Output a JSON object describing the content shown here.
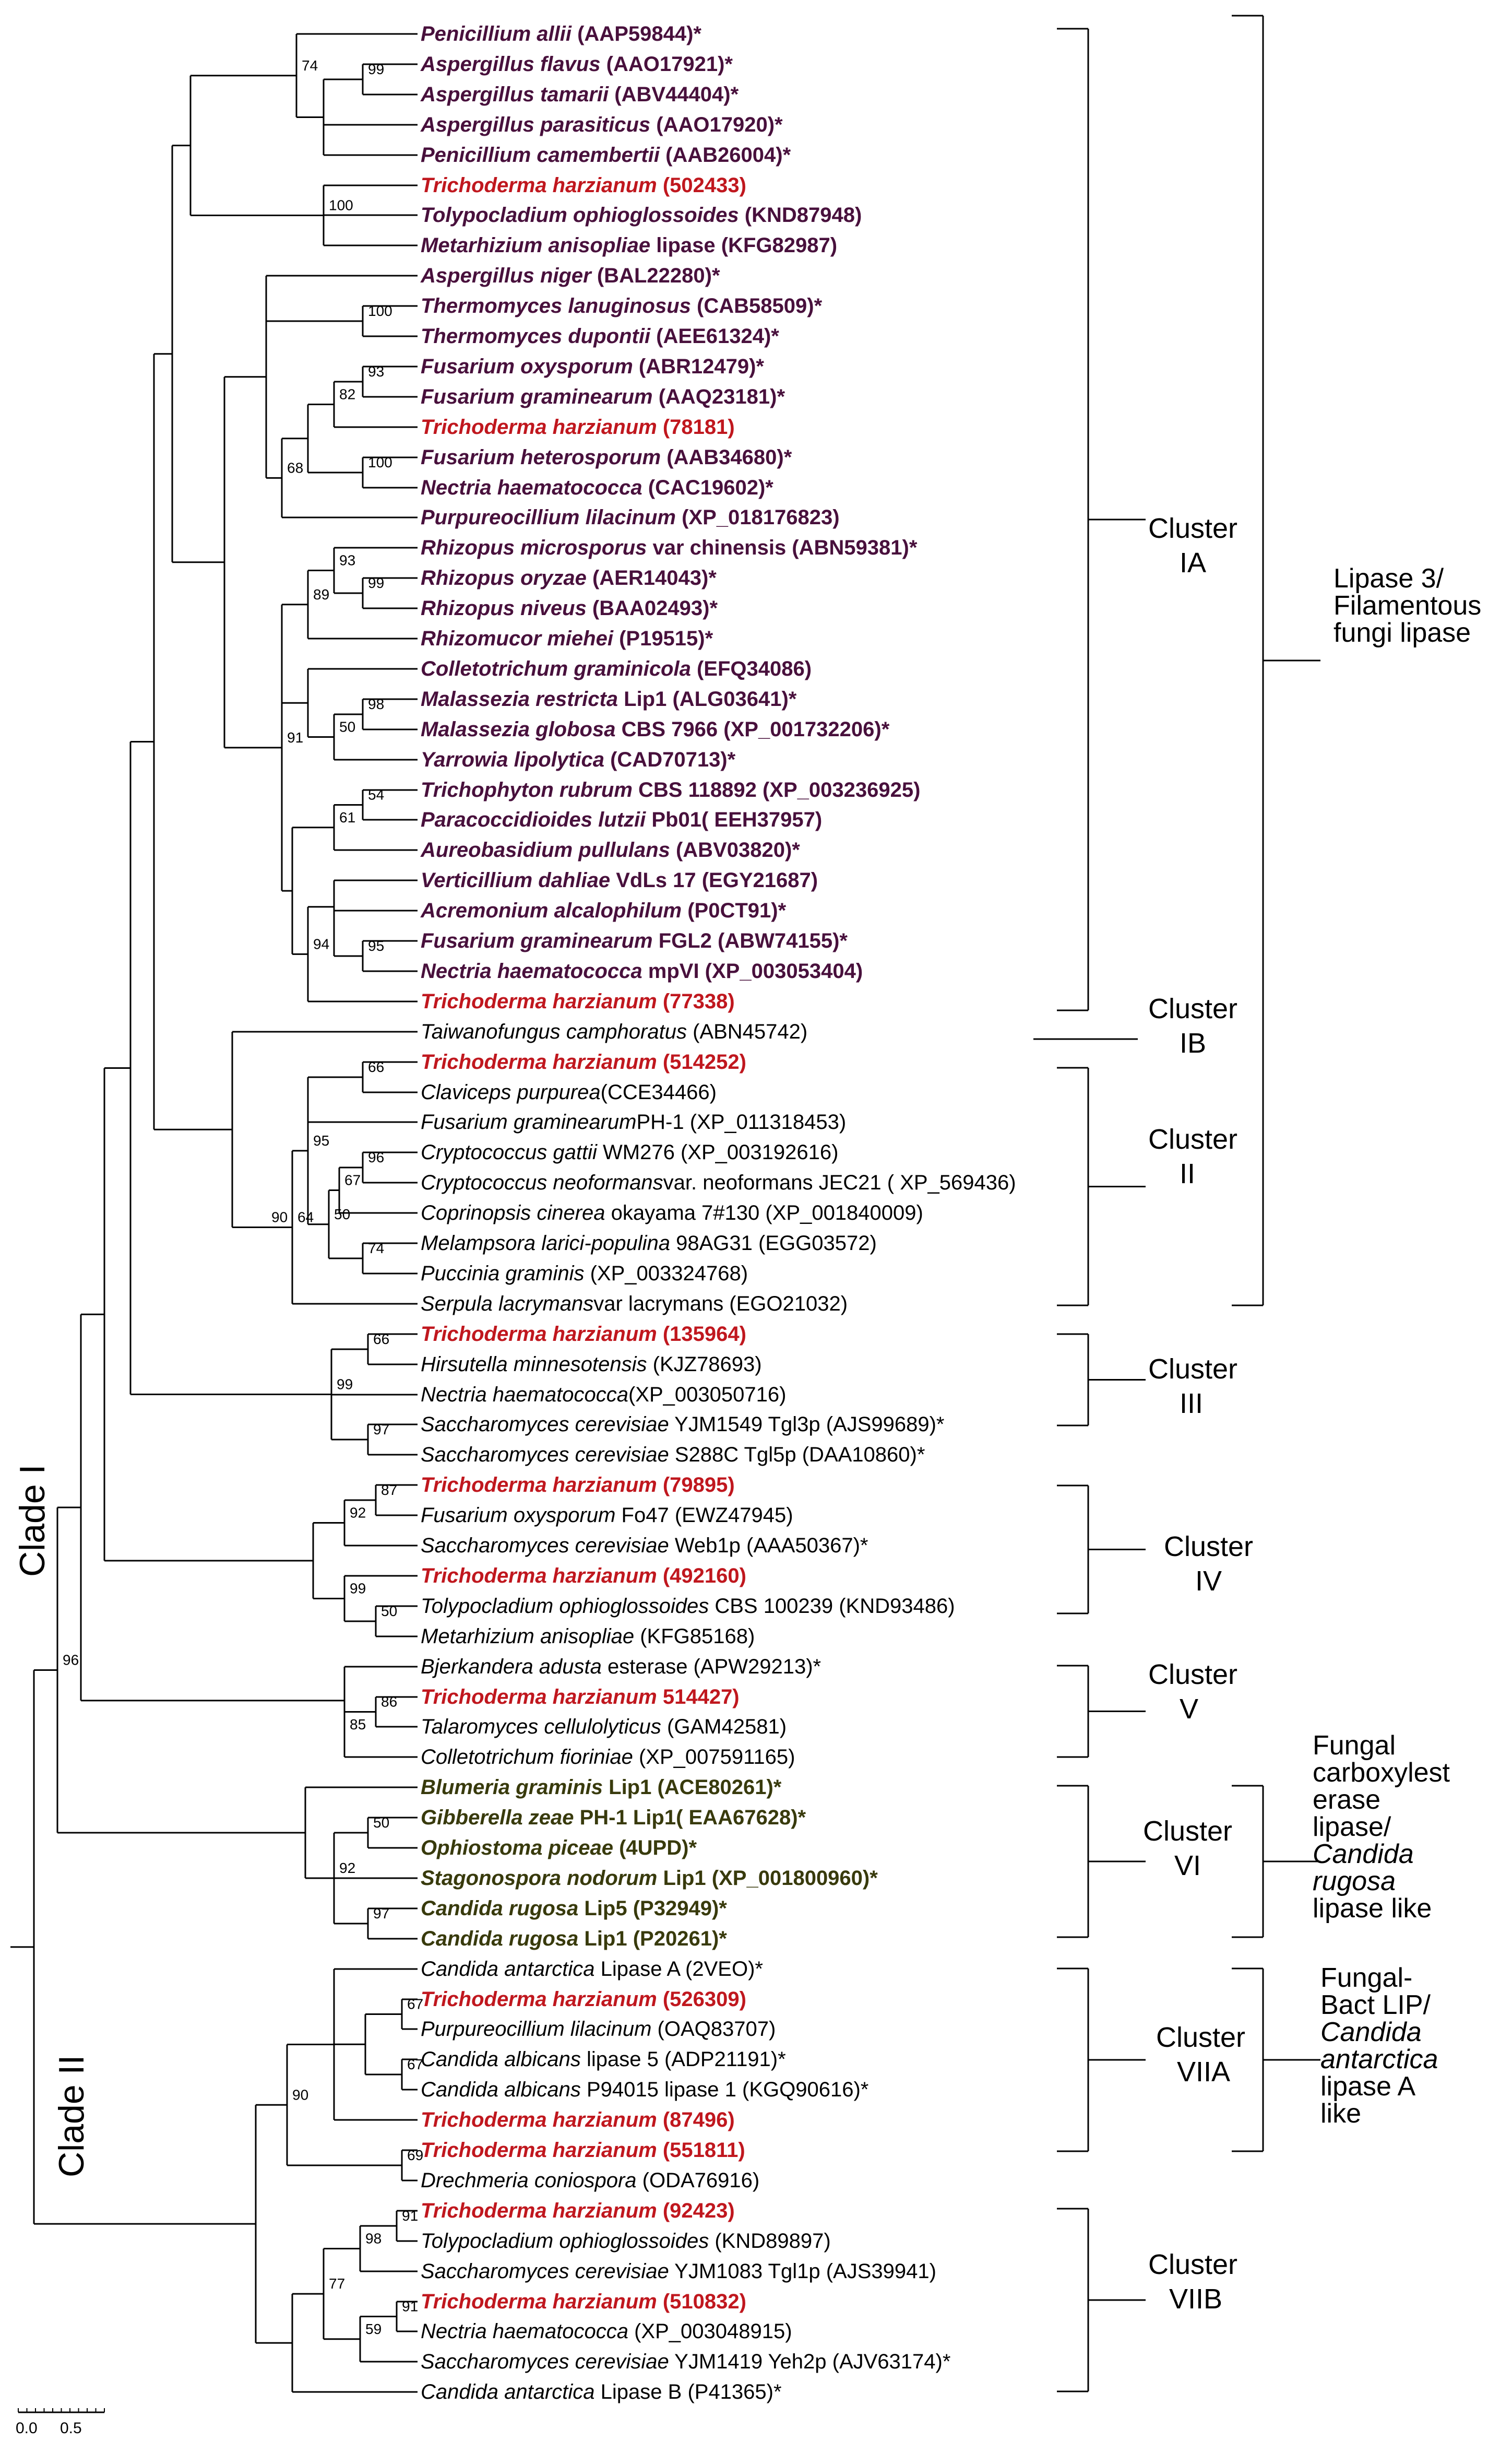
{
  "colors": {
    "line": "#000000",
    "label_default": "#000000",
    "label_highlight": "#c0171e",
    "label_lipase3": "#48103c",
    "label_fungal_carboxyl": "#383a0c"
  },
  "taxa": [
    {
      "id": "t1",
      "species": "Penicillium allii",
      "rest": " (AAP59844)*",
      "style": "lipase3"
    },
    {
      "id": "t2",
      "species": "Aspergillus flavus",
      "rest": " (AAO17921)*",
      "style": "lipase3"
    },
    {
      "id": "t3",
      "species": "Aspergillus tamarii",
      "rest": " (ABV44404)*",
      "style": "lipase3"
    },
    {
      "id": "t4",
      "species": "Aspergillus parasiticus",
      "rest": " (AAO17920)*",
      "style": "lipase3"
    },
    {
      "id": "t5",
      "species": "Penicillium camembertii",
      "rest": " (AAB26004)*",
      "style": "lipase3"
    },
    {
      "id": "t6",
      "species": "Trichoderma harzianum",
      "rest": " (502433)",
      "style": "highlight"
    },
    {
      "id": "t7",
      "species": "Tolypocladium ophioglossoides",
      "rest": " (KND87948)",
      "style": "lipase3"
    },
    {
      "id": "t8",
      "species": "Metarhizium anisopliae",
      "rest": " lipase (KFG82987)",
      "style": "lipase3"
    },
    {
      "id": "t9",
      "species": "Aspergillus niger",
      "rest": " (BAL22280)*",
      "style": "lipase3"
    },
    {
      "id": "t10",
      "species": "Thermomyces lanuginosus",
      "rest": " (CAB58509)*",
      "style": "lipase3"
    },
    {
      "id": "t11",
      "species": "Thermomyces dupontii",
      "rest": " (AEE61324)*",
      "style": "lipase3"
    },
    {
      "id": "t12",
      "species": "Fusarium oxysporum",
      "rest": " (ABR12479)*",
      "style": "lipase3"
    },
    {
      "id": "t13",
      "species": "Fusarium graminearum",
      "rest": " (AAQ23181)*",
      "style": "lipase3"
    },
    {
      "id": "t14",
      "species": "Trichoderma harzianum",
      "rest": " (78181)",
      "style": "highlight"
    },
    {
      "id": "t15",
      "species": "Fusarium heterosporum",
      "rest": " (AAB34680)*",
      "style": "lipase3"
    },
    {
      "id": "t16",
      "species": "Nectria haematococca",
      "rest": " (CAC19602)*",
      "style": "lipase3"
    },
    {
      "id": "t17",
      "species": "Purpureocillium lilacinum",
      "rest": " (XP_018176823)",
      "style": "lipase3"
    },
    {
      "id": "t18",
      "species": "Rhizopus microsporus",
      "rest": " var chinensis (ABN59381)*",
      "style": "lipase3"
    },
    {
      "id": "t19",
      "species": "Rhizopus oryzae",
      "rest": " (AER14043)*",
      "style": "lipase3"
    },
    {
      "id": "t20",
      "species": "Rhizopus niveus",
      "rest": " (BAA02493)*",
      "style": "lipase3"
    },
    {
      "id": "t21",
      "species": "Rhizomucor miehei",
      "rest": " (P19515)*",
      "style": "lipase3"
    },
    {
      "id": "t22",
      "species": "Colletotrichum graminicola",
      "rest": " (EFQ34086)",
      "style": "lipase3"
    },
    {
      "id": "t23",
      "species": "Malassezia restricta",
      "rest": " Lip1 (ALG03641)*",
      "style": "lipase3"
    },
    {
      "id": "t24",
      "species": "Malassezia globosa",
      "rest": " CBS 7966 (XP_001732206)*",
      "style": "lipase3"
    },
    {
      "id": "t25",
      "species": "Yarrowia lipolytica",
      "rest": " (CAD70713)*",
      "style": "lipase3"
    },
    {
      "id": "t26",
      "species": "Trichophyton rubrum",
      "rest": " CBS 118892 (XP_003236925)",
      "style": "lipase3"
    },
    {
      "id": "t27",
      "species": "Paracoccidioides lutzii",
      "rest": " Pb01( EEH37957)",
      "style": "lipase3"
    },
    {
      "id": "t28",
      "species": "Aureobasidium pullulans",
      "rest": "  (ABV03820)*",
      "style": "lipase3"
    },
    {
      "id": "t29",
      "species": "Verticillium dahliae",
      "rest": " VdLs 17 (EGY21687)",
      "style": "lipase3"
    },
    {
      "id": "t30",
      "species": "Acremonium alcalophilum",
      "rest": " (P0CT91)*",
      "style": "lipase3"
    },
    {
      "id": "t31",
      "species": "Fusarium graminearum",
      "rest": " FGL2 (ABW74155)*",
      "style": "lipase3"
    },
    {
      "id": "t32",
      "species": "Nectria haematococca",
      "rest": " mpVI (XP_003053404)",
      "style": "lipase3"
    },
    {
      "id": "t33",
      "species": "Trichoderma harzianum",
      "rest": " (77338)",
      "style": "highlight"
    },
    {
      "id": "t34",
      "species": "Taiwanofungus camphoratus",
      "rest": " (ABN45742)",
      "style": "plain"
    },
    {
      "id": "t35",
      "species": "Trichoderma harzianum",
      "rest": " (514252)",
      "style": "highlight"
    },
    {
      "id": "t36",
      "species": "Claviceps purpurea",
      "rest": "(CCE34466)",
      "style": "plain"
    },
    {
      "id": "t37",
      "species": "Fusarium graminearum",
      "rest": "PH-1 (XP_011318453)",
      "style": "plain"
    },
    {
      "id": "t38",
      "species": "Cryptococcus gattii",
      "rest": " WM276 (XP_003192616)",
      "style": "plain"
    },
    {
      "id": "t39",
      "species": "Cryptococcus neoformans",
      "rest": "var. neoformans JEC21 ( XP_569436)",
      "style": "plain"
    },
    {
      "id": "t40",
      "species": "Coprinopsis cinerea",
      "rest": " okayama 7#130 (XP_001840009)",
      "style": "plain"
    },
    {
      "id": "t41",
      "species": "Melampsora larici-populina",
      "rest": " 98AG31 (EGG03572)",
      "style": "plain"
    },
    {
      "id": "t42",
      "species": "Puccinia graminis",
      "rest": " (XP_003324768)",
      "style": "plain"
    },
    {
      "id": "t43",
      "species": "Serpula lacrymans",
      "rest": "var lacrymans (EGO21032)",
      "style": "plain"
    },
    {
      "id": "t44",
      "species": "Trichoderma harzianum",
      "rest": " (135964)",
      "style": "highlight"
    },
    {
      "id": "t45",
      "species": "Hirsutella minnesotensis",
      "rest": " (KJZ78693)",
      "style": "plain"
    },
    {
      "id": "t46",
      "species": "Nectria haematococca",
      "rest": "(XP_003050716)",
      "style": "plain"
    },
    {
      "id": "t47",
      "species": "Saccharomyces cerevisiae",
      "rest": " YJM1549 Tgl3p (AJS99689)*",
      "style": "plain"
    },
    {
      "id": "t48",
      "species": "Saccharomyces cerevisiae",
      "rest": " S288C Tgl5p (DAA10860)*",
      "style": "plain"
    },
    {
      "id": "t49",
      "species": "Trichoderma harzianum",
      "rest": " (79895)",
      "style": "highlight"
    },
    {
      "id": "t50",
      "species": "Fusarium oxysporum",
      "rest": " Fo47 (EWZ47945)",
      "style": "plain"
    },
    {
      "id": "t51",
      "species": " Saccharomyces cerevisiae",
      "rest": " Web1p (AAA50367)*",
      "style": "plain"
    },
    {
      "id": "t52",
      "species": "Trichoderma harzianum",
      "rest": " (492160)",
      "style": "highlight"
    },
    {
      "id": "t53",
      "species": "Tolypocladium ophioglossoides",
      "rest": " CBS 100239 (KND93486)",
      "style": "plain"
    },
    {
      "id": "t54",
      "species": "Metarhizium anisopliae",
      "rest": " (KFG85168)",
      "style": "plain"
    },
    {
      "id": "t55",
      "species": "Bjerkandera adusta",
      "rest": " esterase (APW29213)*",
      "style": "plain"
    },
    {
      "id": "t56",
      "species": "Trichoderma harzianum",
      "rest": " 514427)",
      "style": "highlight"
    },
    {
      "id": "t57",
      "species": "Talaromyces cellulolyticus",
      "rest": " (GAM42581)",
      "style": "plain"
    },
    {
      "id": "t58",
      "species": "Colletotrichum fioriniae",
      "rest": " (XP_007591165)",
      "style": "plain"
    },
    {
      "id": "t59",
      "species": "Blumeria graminis",
      "rest": " Lip1 (ACE80261)*",
      "style": "fungal"
    },
    {
      "id": "t60",
      "species": "Gibberella zeae",
      "rest": " PH-1 Lip1( EAA67628)*",
      "style": "fungal"
    },
    {
      "id": "t61",
      "species": "Ophiostoma piceae",
      "rest": " (4UPD)*",
      "style": "fungal"
    },
    {
      "id": "t62",
      "species": "Stagonospora nodorum",
      "rest": "  Lip1 (XP_001800960)*",
      "style": "fungal"
    },
    {
      "id": "t63",
      "species": "Candida rugosa",
      "rest": " Lip5 (P32949)*",
      "style": "fungal"
    },
    {
      "id": "t64",
      "species": "Candida rugosa",
      "rest": " Lip1 (P20261)*",
      "style": "fungal"
    },
    {
      "id": "t65",
      "species": "Candida antarctica",
      "rest": " Lipase A (2VEO)*",
      "style": "plain"
    },
    {
      "id": "t66",
      "species": "Trichoderma harzianum",
      "rest": " (526309)",
      "style": "highlight"
    },
    {
      "id": "t67",
      "species": "Purpureocillium lilacinum",
      "rest": " (OAQ83707)",
      "style": "plain"
    },
    {
      "id": "t68",
      "species": "Candida albicans",
      "rest": " lipase 5 (ADP21191)*",
      "style": "plain"
    },
    {
      "id": "t69",
      "species": " Candida albicans",
      "rest": " P94015 lipase 1  (KGQ90616)*",
      "style": "plain"
    },
    {
      "id": "t70",
      "species": "Trichoderma harzianum",
      "rest": " (87496)",
      "style": "highlight"
    },
    {
      "id": "t71",
      "species": "Trichoderma harzianum",
      "rest": " (551811)",
      "style": "highlight"
    },
    {
      "id": "t72",
      "species": "Drechmeria coniospora",
      "rest": " (ODA76916)",
      "style": "plain"
    },
    {
      "id": "t73",
      "species": "Trichoderma harzianum",
      "rest": " (92423)",
      "style": "highlight"
    },
    {
      "id": "t74",
      "species": "Tolypocladium ophioglossoides",
      "rest": " (KND89897)",
      "style": "plain"
    },
    {
      "id": "t75",
      "species": "Saccharomyces cerevisiae",
      "rest": " YJM1083 Tgl1p (AJS39941)",
      "style": "plain"
    },
    {
      "id": "t76",
      "species": "Trichoderma harzianum",
      "rest": " (510832)",
      "style": "highlight"
    },
    {
      "id": "t77",
      "species": "Nectria haematococca",
      "rest": " (XP_003048915)",
      "style": "plain"
    },
    {
      "id": "t78",
      "species": " Saccharomyces cerevisiae",
      "rest": " YJM1419 Yeh2p (AJV63174)*",
      "style": "plain"
    },
    {
      "id": "t79",
      "species": "Candida antarctica",
      "rest": " Lipase B (P41365)*",
      "style": "plain"
    }
  ],
  "bootstrap": [
    "99",
    "74",
    "100",
    "100",
    "93",
    "82",
    "100",
    "68",
    "93",
    "99",
    "89",
    "98",
    "50",
    "54",
    "61",
    "95",
    "94",
    "91",
    "66",
    "95",
    "96",
    "67",
    "64",
    "50",
    "74",
    "90",
    "66",
    "99",
    "97",
    "87",
    "92",
    "99",
    "50",
    "86",
    "85",
    "96",
    "50",
    "92",
    "97",
    "67",
    "67",
    "90",
    "69",
    "91",
    "98",
    "91",
    "77",
    "59"
  ],
  "clusters": [
    {
      "id": "IA",
      "lines": [
        "Cluster",
        "IA"
      ]
    },
    {
      "id": "IB",
      "lines": [
        "Cluster",
        "IB"
      ]
    },
    {
      "id": "II",
      "lines": [
        "Cluster",
        "II"
      ]
    },
    {
      "id": "III",
      "lines": [
        "Cluster",
        "III"
      ]
    },
    {
      "id": "IV",
      "lines": [
        "Cluster",
        "IV"
      ]
    },
    {
      "id": "V",
      "lines": [
        "Cluster",
        "V"
      ]
    },
    {
      "id": "VI",
      "lines": [
        "Cluster",
        "VI"
      ]
    },
    {
      "id": "VIIA",
      "lines": [
        "Cluster",
        "VIIA"
      ]
    },
    {
      "id": "VIIB",
      "lines": [
        "Cluster",
        "VIIB"
      ]
    }
  ],
  "groups": [
    {
      "id": "lipase3",
      "lines": [
        {
          "t": "Lipase 3/",
          "i": false
        },
        {
          "t": "Filamentous",
          "i": false
        },
        {
          "t": "fungi lipase",
          "i": false
        }
      ]
    },
    {
      "id": "fungal-carboxylesterase",
      "lines": [
        {
          "t": "Fungal",
          "i": false
        },
        {
          "t": "carboxylest",
          "i": false
        },
        {
          "t": "erase",
          "i": false
        },
        {
          "t": "lipase/",
          "i": false
        },
        {
          "t": "Candida",
          "i": true
        },
        {
          "t": "rugosa",
          "i": true
        },
        {
          "t": "lipase like",
          "i": false
        }
      ]
    },
    {
      "id": "fungal-bact",
      "lines": [
        {
          "t": "Fungal-",
          "i": false
        },
        {
          "t": "Bact LIP/",
          "i": false
        },
        {
          "t": "Candida",
          "i": true
        },
        {
          "t": "antarctica",
          "i": true
        },
        {
          "t": "lipase A",
          "i": false
        },
        {
          "t": "like",
          "i": false
        }
      ]
    }
  ],
  "clades": [
    {
      "id": "clade-1",
      "label": "Clade I"
    },
    {
      "id": "clade-2",
      "label": "Clade II"
    }
  ],
  "scale_bar": {
    "labels": [
      "0.0",
      "0.5"
    ]
  }
}
